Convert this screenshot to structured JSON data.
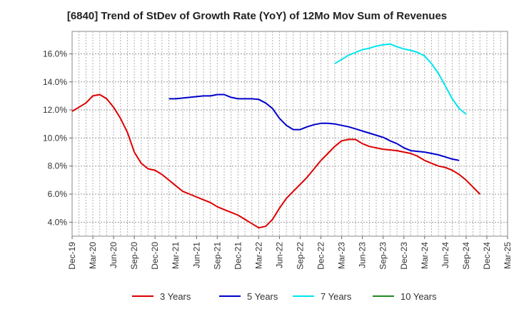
{
  "chart_data": {
    "type": "line",
    "title": "[6840]  Trend of StDev of Growth Rate (YoY) of 12Mo Mov Sum of Revenues",
    "xlabel": "",
    "ylabel": "",
    "ylim": [
      3.0,
      17.6
    ],
    "yticks": [
      4.0,
      6.0,
      8.0,
      10.0,
      12.0,
      14.0,
      16.0
    ],
    "ytick_labels": [
      "4.0%",
      "6.0%",
      "8.0%",
      "10.0%",
      "12.0%",
      "14.0%",
      "16.0%"
    ],
    "xtick_labels": [
      "Dec-19",
      "Mar-20",
      "Jun-20",
      "Sep-20",
      "Dec-20",
      "Mar-21",
      "Jun-21",
      "Sep-21",
      "Dec-21",
      "Mar-22",
      "Jun-22",
      "Sep-22",
      "Dec-22",
      "Mar-23",
      "Jun-23",
      "Sep-23",
      "Dec-23",
      "Mar-24",
      "Jun-24",
      "Sep-24",
      "Dec-24",
      "Mar-25"
    ],
    "grid": true,
    "legend_position": "bottom",
    "series": [
      {
        "name": "3 Years",
        "color": "#dd0000",
        "start_index": 0,
        "values": [
          11.9,
          12.2,
          12.5,
          13.0,
          13.1,
          12.8,
          12.2,
          11.4,
          10.4,
          9.0,
          8.2,
          7.8,
          7.7,
          7.4,
          7.0,
          6.6,
          6.2,
          6.0,
          5.8,
          5.6,
          5.4,
          5.1,
          4.9,
          4.7,
          4.5,
          4.2,
          3.9,
          3.6,
          3.7,
          4.2,
          5.0,
          5.7,
          6.2,
          6.7,
          7.2,
          7.8,
          8.4,
          8.9,
          9.4,
          9.8,
          9.9,
          9.9,
          9.6,
          9.4,
          9.3,
          9.2,
          9.15,
          9.1,
          9.0,
          8.9,
          8.7,
          8.4,
          8.2,
          8.0,
          7.9,
          7.7,
          7.4,
          7.0,
          6.5,
          6.0
        ]
      },
      {
        "name": "5 Years",
        "color": "#0000cc",
        "start_index": 14,
        "values": [
          12.8,
          12.8,
          12.85,
          12.9,
          12.95,
          13.0,
          13.0,
          13.1,
          13.1,
          12.9,
          12.8,
          12.8,
          12.8,
          12.75,
          12.5,
          12.1,
          11.4,
          10.9,
          10.6,
          10.6,
          10.8,
          10.95,
          11.05,
          11.05,
          11.0,
          10.9,
          10.8,
          10.65,
          10.5,
          10.35,
          10.2,
          10.05,
          9.8,
          9.6,
          9.3,
          9.1,
          9.05,
          9.0,
          8.9,
          8.8,
          8.65,
          8.5,
          8.4
        ]
      },
      {
        "name": "7 Years",
        "color": "#00e5ee",
        "start_index": 38,
        "values": [
          15.3,
          15.6,
          15.9,
          16.1,
          16.3,
          16.4,
          16.55,
          16.65,
          16.7,
          16.5,
          16.35,
          16.25,
          16.1,
          15.85,
          15.3,
          14.6,
          13.7,
          12.8,
          12.1,
          11.7
        ]
      },
      {
        "name": "10 Years",
        "color": "#228b22",
        "start_index": 0,
        "values": []
      }
    ]
  }
}
